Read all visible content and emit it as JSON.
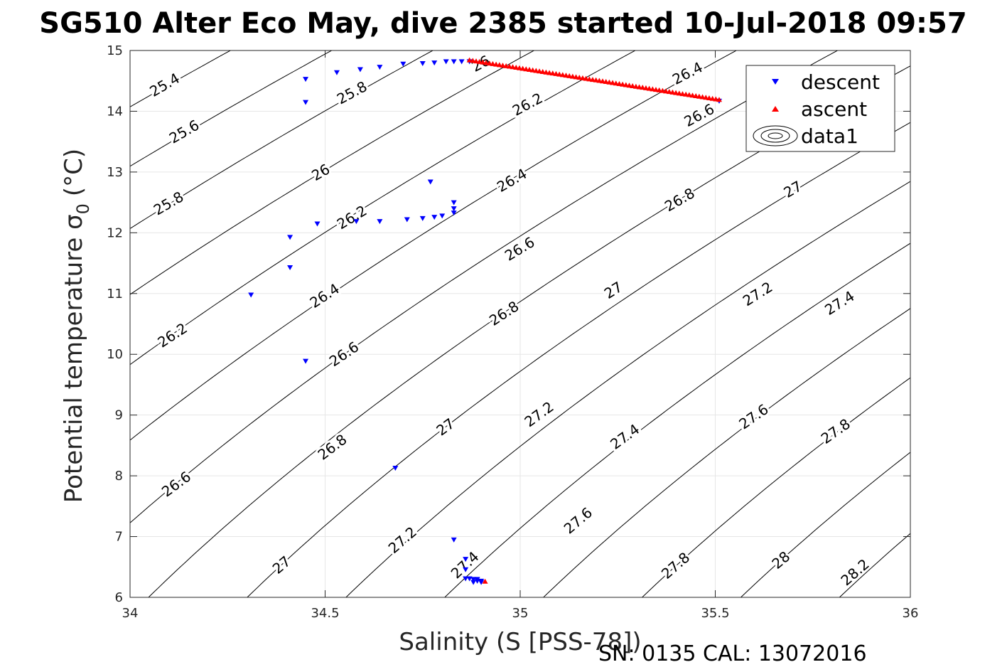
{
  "title": "SG510 Alter Eco May, dive 2385 started 10-Jul-2018 09:57",
  "footer": "SN: 0135  CAL: 13072016",
  "chart_data": {
    "type": "scatter",
    "xlabel": "Salinity (S [PSS-78])",
    "ylabel": "Potential temperature σ",
    "ylabel_sub": "0",
    "ylabel_unit": "(°C)",
    "xlim": [
      34,
      36
    ],
    "ylim": [
      6,
      15
    ],
    "xticks": [
      34,
      34.5,
      35,
      35.5,
      36
    ],
    "xtick_labels": [
      "34",
      "34.5",
      "35",
      "35.5",
      "36"
    ],
    "yticks": [
      6,
      7,
      8,
      9,
      10,
      11,
      12,
      13,
      14,
      15
    ],
    "ytick_labels": [
      "6",
      "7",
      "8",
      "9",
      "10",
      "11",
      "12",
      "13",
      "14",
      "15"
    ],
    "grid": true,
    "legend_position": "top-right",
    "series": [
      {
        "name": "descent",
        "marker": "triangle-down",
        "color": "#0000ff",
        "x": [
          34.31,
          34.41,
          34.41,
          34.45,
          34.45,
          34.45,
          34.48,
          34.53,
          34.58,
          34.59,
          34.64,
          34.64,
          34.7,
          34.71,
          34.75,
          34.75,
          34.77,
          34.78,
          34.78,
          34.8,
          34.81,
          34.83,
          34.83,
          34.83,
          34.83,
          34.85,
          34.86,
          34.87,
          34.68,
          34.83,
          34.86,
          34.86,
          34.87,
          34.88,
          34.88,
          34.89,
          34.89,
          34.9,
          34.9,
          35.51
        ],
        "y": [
          10.98,
          11.43,
          11.93,
          9.89,
          14.15,
          14.53,
          12.15,
          14.64,
          12.19,
          14.69,
          12.19,
          14.73,
          14.78,
          12.22,
          14.79,
          12.24,
          12.84,
          12.26,
          14.8,
          12.28,
          14.82,
          12.33,
          12.4,
          12.5,
          14.82,
          14.82,
          6.63,
          14.82,
          8.13,
          6.95,
          6.31,
          6.46,
          6.31,
          6.3,
          6.25,
          6.27,
          6.3,
          6.27,
          6.25,
          14.17
        ]
      },
      {
        "name": "ascent",
        "marker": "triangle-up",
        "color": "#ff0000",
        "x_range": [
          34.87,
          35.51
        ],
        "y_range": [
          14.84,
          14.19
        ],
        "count": 76,
        "extra_points": [
          [
            34.91,
            6.26
          ]
        ]
      },
      {
        "name": "data1",
        "type": "contour",
        "color": "#000000",
        "quantity": "sigma0 isopycnals",
        "levels": [
          25.4,
          25.6,
          25.8,
          26,
          26.2,
          26.4,
          26.6,
          26.8,
          27,
          27.2,
          27.4,
          27.6,
          27.8,
          28,
          28.2
        ],
        "label_positions": [
          {
            "label": "25.4",
            "s": 34.09,
            "t": 14.42,
            "rot": -30
          },
          {
            "label": "25.6",
            "s": 34.14,
            "t": 13.65,
            "rot": -30
          },
          {
            "label": "25.8",
            "s": 34.1,
            "t": 12.47,
            "rot": -30
          },
          {
            "label": "26.2",
            "s": 34.11,
            "t": 10.3,
            "rot": -33
          },
          {
            "label": "26.6",
            "s": 34.12,
            "t": 7.85,
            "rot": -36
          },
          {
            "label": "27",
            "s": 34.39,
            "t": 6.52,
            "rot": -40
          },
          {
            "label": "25.8",
            "s": 34.57,
            "t": 14.29,
            "rot": -28
          },
          {
            "label": "26",
            "s": 34.49,
            "t": 12.98,
            "rot": -30
          },
          {
            "label": "26.2",
            "s": 34.57,
            "t": 12.24,
            "rot": -31
          },
          {
            "label": "26.4",
            "s": 34.5,
            "t": 10.95,
            "rot": -33
          },
          {
            "label": "26.6",
            "s": 34.55,
            "t": 9.99,
            "rot": -34
          },
          {
            "label": "26.8",
            "s": 34.52,
            "t": 8.46,
            "rot": -37
          },
          {
            "label": "27.2",
            "s": 34.7,
            "t": 6.93,
            "rot": -41
          },
          {
            "label": "27.4",
            "s": 34.86,
            "t": 6.52,
            "rot": -43
          },
          {
            "label": "26",
            "s": 34.9,
            "t": 14.77,
            "rot": -27
          },
          {
            "label": "26.2",
            "s": 35.02,
            "t": 14.1,
            "rot": -28
          },
          {
            "label": "26.4",
            "s": 34.98,
            "t": 12.85,
            "rot": -30
          },
          {
            "label": "26.6",
            "s": 35.0,
            "t": 11.72,
            "rot": -31
          },
          {
            "label": "26.8",
            "s": 34.96,
            "t": 10.66,
            "rot": -33
          },
          {
            "label": "27",
            "s": 34.81,
            "t": 8.79,
            "rot": -36
          },
          {
            "label": "27.2",
            "s": 35.05,
            "t": 9.0,
            "rot": -36
          },
          {
            "label": "27.6",
            "s": 35.15,
            "t": 7.25,
            "rot": -40
          },
          {
            "label": "26.4",
            "s": 35.43,
            "t": 14.61,
            "rot": -27
          },
          {
            "label": "26.6",
            "s": 35.46,
            "t": 13.92,
            "rot": -28
          },
          {
            "label": "26.8",
            "s": 35.41,
            "t": 12.53,
            "rot": -30
          },
          {
            "label": "27",
            "s": 35.24,
            "t": 11.04,
            "rot": -32
          },
          {
            "label": "27.4",
            "s": 35.27,
            "t": 8.63,
            "rot": -36
          },
          {
            "label": "27.8",
            "s": 35.4,
            "t": 6.51,
            "rot": -41
          },
          {
            "label": "27",
            "s": 35.7,
            "t": 12.7,
            "rot": -30
          },
          {
            "label": "27.2",
            "s": 35.61,
            "t": 10.98,
            "rot": -32
          },
          {
            "label": "27.4",
            "s": 35.82,
            "t": 10.83,
            "rot": -32
          },
          {
            "label": "27.6",
            "s": 35.6,
            "t": 8.96,
            "rot": -35
          },
          {
            "label": "27.8",
            "s": 35.81,
            "t": 8.72,
            "rot": -35
          },
          {
            "label": "28",
            "s": 35.67,
            "t": 6.6,
            "rot": -40
          },
          {
            "label": "28.2",
            "s": 35.86,
            "t": 6.4,
            "rot": -41
          }
        ]
      }
    ]
  }
}
